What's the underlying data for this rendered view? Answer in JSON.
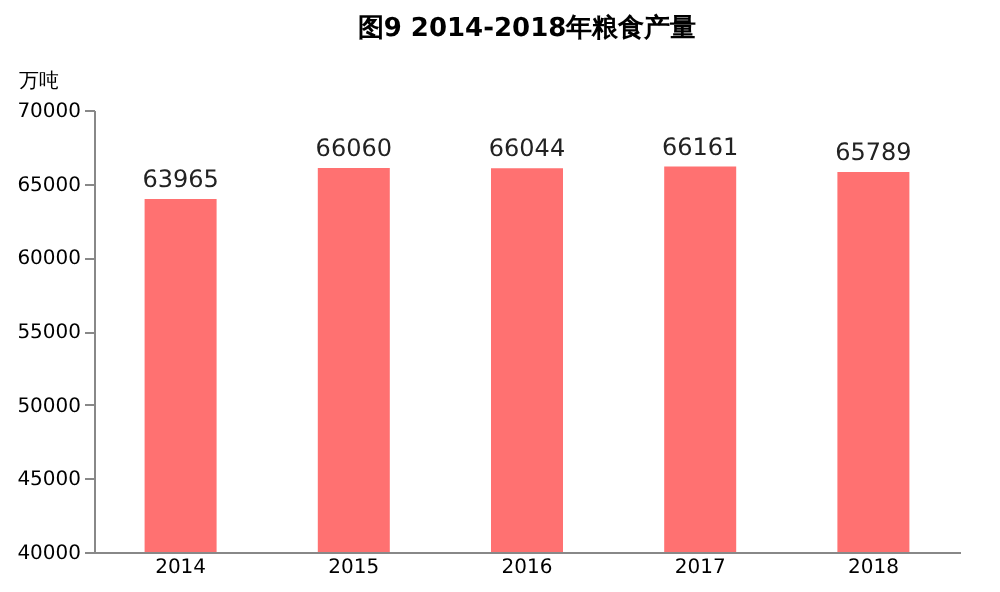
{
  "chart_data": {
    "type": "bar",
    "title": "图9  2014-2018年粮食产量",
    "ylabel": "万吨",
    "categories": [
      "2014",
      "2015",
      "2016",
      "2017",
      "2018"
    ],
    "values": [
      63965,
      66060,
      66044,
      66161,
      65789
    ],
    "color": "#ff7171",
    "ylim": [
      40000,
      70000
    ],
    "yticks": [
      40000,
      45000,
      50000,
      55000,
      60000,
      65000,
      70000
    ],
    "grid": false,
    "data_labels": true
  }
}
